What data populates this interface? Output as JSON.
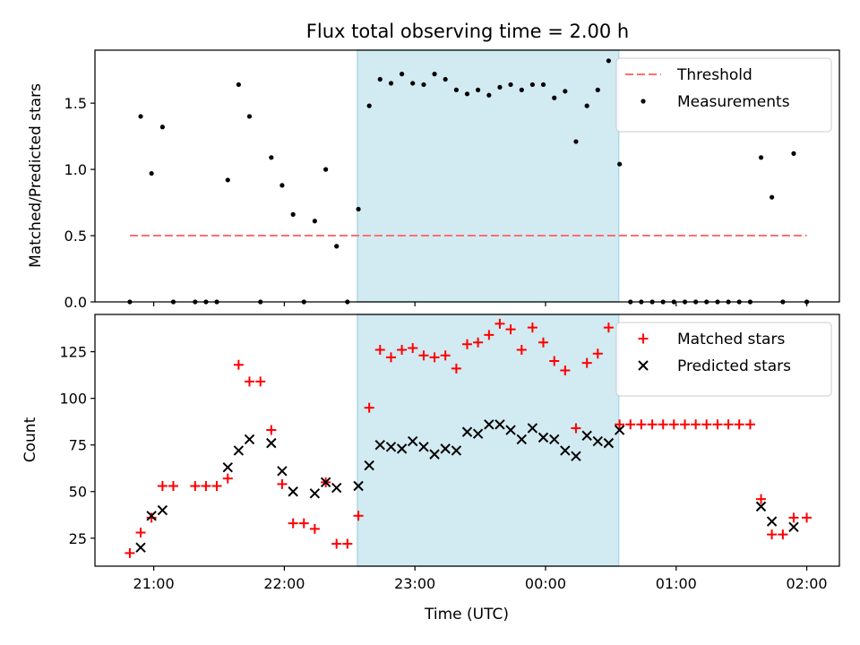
{
  "title": "Flux total observing time = 2.00 h",
  "chart_data": [
    {
      "type": "scatter",
      "ylabel": "Matched/Predicted stars",
      "ylim": [
        0,
        1.9
      ],
      "y_ticks": [
        0.0,
        0.5,
        1.0,
        1.5
      ],
      "y_tick_labels": [
        "0.0",
        "0.5",
        "1.0",
        "1.5"
      ],
      "xlim": [
        -0.45,
        5.25
      ],
      "x_unit": "hours after 21:00 UTC",
      "x_ticks": [
        0,
        1,
        2,
        3,
        4,
        5
      ],
      "shaded_span": {
        "x": [
          1.56,
          3.56
        ],
        "color": "#add8e6"
      },
      "legend_position": "upper right",
      "series": [
        {
          "name": "Threshold",
          "kind": "dashed-line",
          "color": "#ff6f6f",
          "x": [
            -0.183,
            5.0
          ],
          "y": [
            0.5,
            0.5
          ]
        },
        {
          "name": "Measurements",
          "kind": "points",
          "color": "#000000",
          "x": [
            -0.183,
            -0.1,
            -0.017,
            0.067,
            0.15,
            0.317,
            0.4,
            0.483,
            0.567,
            0.65,
            0.733,
            0.817,
            0.9,
            0.983,
            1.067,
            1.15,
            1.233,
            1.317,
            1.4,
            1.483,
            1.567,
            1.65,
            1.733,
            1.817,
            1.9,
            1.983,
            2.067,
            2.15,
            2.233,
            2.317,
            2.4,
            2.483,
            2.567,
            2.65,
            2.733,
            2.817,
            2.9,
            2.983,
            3.067,
            3.15,
            3.233,
            3.317,
            3.4,
            3.483,
            3.567,
            3.65,
            3.733,
            3.817,
            3.9,
            3.983,
            4.067,
            4.15,
            4.233,
            4.317,
            4.4,
            4.483,
            4.567,
            4.65,
            4.733,
            4.817,
            4.9,
            5.0
          ],
          "y": [
            0.0,
            1.4,
            0.97,
            1.32,
            0.0,
            0.0,
            0.0,
            0.0,
            0.92,
            1.64,
            1.4,
            0.0,
            1.09,
            0.88,
            0.66,
            0.0,
            0.61,
            1.0,
            0.42,
            0.0,
            0.7,
            1.48,
            1.68,
            1.65,
            1.72,
            1.65,
            1.64,
            1.72,
            1.68,
            1.6,
            1.57,
            1.6,
            1.56,
            1.62,
            1.64,
            1.6,
            1.64,
            1.64,
            1.54,
            1.59,
            1.21,
            1.48,
            1.6,
            1.82,
            1.04,
            0.0,
            0.0,
            0.0,
            0.0,
            0.0,
            0.0,
            0.0,
            0.0,
            0.0,
            0.0,
            0.0,
            0.0,
            1.09,
            0.79,
            0.0,
            1.12,
            0.0
          ]
        }
      ]
    },
    {
      "type": "scatter",
      "xlabel": "Time (UTC)",
      "ylabel": "Count",
      "ylim": [
        10,
        145
      ],
      "y_ticks": [
        25,
        50,
        75,
        100,
        125
      ],
      "y_tick_labels": [
        "25",
        "50",
        "75",
        "100",
        "125"
      ],
      "xlim": [
        -0.45,
        5.25
      ],
      "x_unit": "hours after 21:00 UTC",
      "x_ticks": [
        0,
        1,
        2,
        3,
        4,
        5
      ],
      "x_tick_labels": [
        "21:00",
        "22:00",
        "23:00",
        "00:00",
        "01:00",
        "02:00"
      ],
      "shaded_span": {
        "x": [
          1.56,
          3.56
        ],
        "color": "#add8e6"
      },
      "legend_position": "upper right",
      "series": [
        {
          "name": "Matched stars",
          "kind": "plus",
          "color": "#ff0000",
          "x": [
            -0.183,
            -0.1,
            -0.017,
            0.067,
            0.15,
            0.317,
            0.4,
            0.483,
            0.567,
            0.65,
            0.733,
            0.817,
            0.9,
            0.983,
            1.067,
            1.15,
            1.233,
            1.317,
            1.4,
            1.483,
            1.567,
            1.65,
            1.733,
            1.817,
            1.9,
            1.983,
            2.067,
            2.15,
            2.233,
            2.317,
            2.4,
            2.483,
            2.567,
            2.65,
            2.733,
            2.817,
            2.9,
            2.983,
            3.067,
            3.15,
            3.233,
            3.317,
            3.4,
            3.483,
            3.567,
            3.65,
            3.733,
            3.817,
            3.9,
            3.983,
            4.067,
            4.15,
            4.233,
            4.317,
            4.4,
            4.483,
            4.567,
            4.65,
            4.733,
            4.817,
            4.9,
            5.0
          ],
          "y": [
            17,
            28,
            36,
            53,
            53,
            53,
            53,
            53,
            57,
            118,
            109,
            109,
            83,
            54,
            33,
            33,
            30,
            55,
            22,
            22,
            37,
            95,
            126,
            122,
            126,
            127,
            123,
            122,
            123,
            116,
            129,
            130,
            134,
            140,
            137,
            126,
            138,
            130,
            120,
            115,
            84,
            119,
            124,
            138,
            86,
            86,
            86,
            86,
            86,
            86,
            86,
            86,
            86,
            86,
            86,
            86,
            86,
            46,
            27,
            27,
            36,
            36
          ]
        },
        {
          "name": "Predicted stars",
          "kind": "x",
          "color": "#000000",
          "x": [
            -0.1,
            -0.017,
            0.067,
            0.567,
            0.65,
            0.733,
            0.9,
            0.983,
            1.067,
            1.233,
            1.317,
            1.4,
            1.567,
            1.65,
            1.733,
            1.817,
            1.9,
            1.983,
            2.067,
            2.15,
            2.233,
            2.317,
            2.4,
            2.483,
            2.567,
            2.65,
            2.733,
            2.817,
            2.9,
            2.983,
            3.067,
            3.15,
            3.233,
            3.317,
            3.4,
            3.483,
            3.567,
            4.65,
            4.733,
            4.9
          ],
          "y": [
            20,
            37,
            40,
            63,
            72,
            78,
            76,
            61,
            50,
            49,
            55,
            52,
            53,
            64,
            75,
            74,
            73,
            77,
            74,
            70,
            73,
            72,
            82,
            81,
            86,
            86,
            83,
            78,
            84,
            79,
            78,
            72,
            69,
            80,
            77,
            76,
            83,
            42,
            34,
            31
          ]
        }
      ]
    }
  ]
}
